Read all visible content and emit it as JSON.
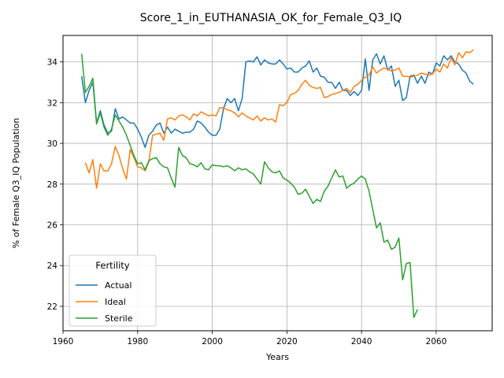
{
  "chart_data": {
    "type": "line",
    "title": "Score_1_in_EUTHANASIA_OK_for_Female_Q3_IQ",
    "xlabel": "Years",
    "ylabel": "% of Female Q3_IQ Population",
    "xlim": [
      1960,
      2075
    ],
    "ylim": [
      20.8,
      35.3
    ],
    "xticks": [
      1960,
      1980,
      2000,
      2020,
      2040,
      2060
    ],
    "yticks": [
      22,
      24,
      26,
      28,
      30,
      32,
      34
    ],
    "grid": true,
    "legend": {
      "title": "Fertility",
      "placement": "lower-left"
    },
    "series": [
      {
        "name": "Actual",
        "color": "#1f77b4",
        "points": [
          [
            1965,
            33.3
          ],
          [
            1966,
            32.0
          ],
          [
            1967,
            32.6
          ],
          [
            1968,
            33.0
          ],
          [
            1969,
            31.0
          ],
          [
            1970,
            31.6
          ],
          [
            1971,
            30.9
          ],
          [
            1972,
            30.5
          ],
          [
            1973,
            30.6
          ],
          [
            1974,
            31.7
          ],
          [
            1975,
            31.2
          ],
          [
            1976,
            31.3
          ],
          [
            1977,
            31.15
          ],
          [
            1978,
            31.0
          ],
          [
            1979,
            31.0
          ],
          [
            1980,
            30.7
          ],
          [
            1981,
            30.3
          ],
          [
            1982,
            29.8
          ],
          [
            1983,
            30.4
          ],
          [
            1984,
            30.6
          ],
          [
            1985,
            30.9
          ],
          [
            1986,
            31.0
          ],
          [
            1987,
            30.5
          ],
          [
            1988,
            30.8
          ],
          [
            1989,
            30.5
          ],
          [
            1990,
            30.7
          ],
          [
            1991,
            30.6
          ],
          [
            1992,
            30.5
          ],
          [
            1993,
            30.55
          ],
          [
            1994,
            30.55
          ],
          [
            1995,
            30.7
          ],
          [
            1996,
            31.1
          ],
          [
            1997,
            31.0
          ],
          [
            1998,
            30.8
          ],
          [
            1999,
            30.55
          ],
          [
            2000,
            30.4
          ],
          [
            2001,
            30.4
          ],
          [
            2002,
            30.7
          ],
          [
            2003,
            31.7
          ],
          [
            2004,
            32.2
          ],
          [
            2005,
            32.0
          ],
          [
            2006,
            32.2
          ],
          [
            2007,
            31.6
          ],
          [
            2008,
            32.2
          ],
          [
            2009,
            34.0
          ],
          [
            2010,
            34.05
          ],
          [
            2011,
            34.0
          ],
          [
            2012,
            34.25
          ],
          [
            2013,
            33.85
          ],
          [
            2014,
            34.1
          ],
          [
            2015,
            33.95
          ],
          [
            2016,
            33.9
          ],
          [
            2017,
            33.9
          ],
          [
            2018,
            34.1
          ],
          [
            2019,
            33.9
          ],
          [
            2020,
            33.65
          ],
          [
            2021,
            33.7
          ],
          [
            2022,
            33.5
          ],
          [
            2023,
            33.5
          ],
          [
            2024,
            33.7
          ],
          [
            2025,
            33.8
          ],
          [
            2026,
            34.05
          ],
          [
            2027,
            33.5
          ],
          [
            2028,
            33.7
          ],
          [
            2029,
            33.3
          ],
          [
            2030,
            33.25
          ],
          [
            2031,
            33.0
          ],
          [
            2032,
            33.0
          ],
          [
            2033,
            32.7
          ],
          [
            2034,
            33.0
          ],
          [
            2035,
            32.6
          ],
          [
            2036,
            32.6
          ],
          [
            2037,
            32.35
          ],
          [
            2038,
            32.55
          ],
          [
            2039,
            32.35
          ],
          [
            2040,
            32.6
          ],
          [
            2041,
            34.15
          ],
          [
            2042,
            32.6
          ],
          [
            2043,
            34.1
          ],
          [
            2044,
            34.4
          ],
          [
            2045,
            33.9
          ],
          [
            2046,
            34.3
          ],
          [
            2047,
            33.6
          ],
          [
            2048,
            33.8
          ],
          [
            2049,
            32.8
          ],
          [
            2050,
            33.1
          ],
          [
            2051,
            32.1
          ],
          [
            2052,
            32.25
          ],
          [
            2053,
            33.3
          ],
          [
            2054,
            33.35
          ],
          [
            2055,
            32.95
          ],
          [
            2056,
            33.3
          ],
          [
            2057,
            32.95
          ],
          [
            2058,
            33.5
          ],
          [
            2059,
            33.4
          ],
          [
            2060,
            33.95
          ],
          [
            2061,
            33.8
          ],
          [
            2062,
            34.3
          ],
          [
            2063,
            34.1
          ],
          [
            2064,
            34.3
          ],
          [
            2065,
            34.0
          ],
          [
            2066,
            33.9
          ],
          [
            2067,
            33.6
          ],
          [
            2068,
            33.45
          ],
          [
            2069,
            33.05
          ],
          [
            2070,
            32.9
          ]
        ]
      },
      {
        "name": "Ideal",
        "color": "#ff7f0e",
        "points": [
          [
            1966,
            29.05
          ],
          [
            1967,
            28.55
          ],
          [
            1968,
            29.2
          ],
          [
            1969,
            27.8
          ],
          [
            1970,
            29.0
          ],
          [
            1971,
            28.65
          ],
          [
            1972,
            28.65
          ],
          [
            1973,
            29.0
          ],
          [
            1974,
            29.85
          ],
          [
            1975,
            29.4
          ],
          [
            1976,
            28.75
          ],
          [
            1977,
            28.25
          ],
          [
            1978,
            29.7
          ],
          [
            1979,
            29.3
          ],
          [
            1980,
            28.85
          ],
          [
            1981,
            28.8
          ],
          [
            1982,
            28.65
          ],
          [
            1983,
            29.1
          ],
          [
            1984,
            30.4
          ],
          [
            1985,
            30.45
          ],
          [
            1986,
            30.5
          ],
          [
            1987,
            30.15
          ],
          [
            1988,
            31.2
          ],
          [
            1989,
            31.25
          ],
          [
            1990,
            31.15
          ],
          [
            1991,
            31.35
          ],
          [
            1992,
            31.4
          ],
          [
            1993,
            31.3
          ],
          [
            1994,
            31.15
          ],
          [
            1995,
            31.45
          ],
          [
            1996,
            31.35
          ],
          [
            1997,
            31.55
          ],
          [
            1998,
            31.45
          ],
          [
            1999,
            31.35
          ],
          [
            2000,
            31.4
          ],
          [
            2001,
            31.35
          ],
          [
            2002,
            31.75
          ],
          [
            2003,
            31.75
          ],
          [
            2004,
            31.65
          ],
          [
            2005,
            31.6
          ],
          [
            2006,
            31.5
          ],
          [
            2007,
            31.3
          ],
          [
            2008,
            31.5
          ],
          [
            2009,
            31.35
          ],
          [
            2010,
            31.25
          ],
          [
            2011,
            31.15
          ],
          [
            2012,
            31.35
          ],
          [
            2013,
            31.1
          ],
          [
            2014,
            31.25
          ],
          [
            2015,
            31.15
          ],
          [
            2016,
            31.2
          ],
          [
            2017,
            31.05
          ],
          [
            2018,
            31.9
          ],
          [
            2019,
            31.85
          ],
          [
            2020,
            32.0
          ],
          [
            2021,
            32.4
          ],
          [
            2022,
            32.45
          ],
          [
            2023,
            32.6
          ],
          [
            2024,
            32.9
          ],
          [
            2025,
            33.1
          ],
          [
            2026,
            32.85
          ],
          [
            2027,
            32.75
          ],
          [
            2028,
            32.7
          ],
          [
            2029,
            32.75
          ],
          [
            2030,
            32.25
          ],
          [
            2031,
            32.3
          ],
          [
            2032,
            32.4
          ],
          [
            2033,
            32.45
          ],
          [
            2034,
            32.5
          ],
          [
            2035,
            32.6
          ],
          [
            2036,
            32.7
          ],
          [
            2037,
            32.5
          ],
          [
            2038,
            32.8
          ],
          [
            2039,
            32.9
          ],
          [
            2040,
            33.1
          ],
          [
            2041,
            33.25
          ],
          [
            2042,
            33.35
          ],
          [
            2043,
            33.75
          ],
          [
            2044,
            33.45
          ],
          [
            2045,
            33.6
          ],
          [
            2046,
            33.7
          ],
          [
            2047,
            33.65
          ],
          [
            2048,
            33.55
          ],
          [
            2049,
            33.6
          ],
          [
            2050,
            33.7
          ],
          [
            2051,
            33.3
          ],
          [
            2052,
            33.3
          ],
          [
            2053,
            33.25
          ],
          [
            2054,
            33.3
          ],
          [
            2055,
            33.35
          ],
          [
            2056,
            33.45
          ],
          [
            2057,
            33.4
          ],
          [
            2058,
            33.35
          ],
          [
            2059,
            33.4
          ],
          [
            2060,
            33.65
          ],
          [
            2061,
            33.5
          ],
          [
            2062,
            33.9
          ],
          [
            2063,
            33.7
          ],
          [
            2064,
            34.2
          ],
          [
            2065,
            33.85
          ],
          [
            2066,
            34.45
          ],
          [
            2067,
            34.2
          ],
          [
            2068,
            34.5
          ],
          [
            2069,
            34.45
          ],
          [
            2070,
            34.6
          ]
        ]
      },
      {
        "name": "Sterile",
        "color": "#2ca02c",
        "points": [
          [
            1965,
            34.4
          ],
          [
            1966,
            32.5
          ],
          [
            1967,
            32.8
          ],
          [
            1968,
            33.2
          ],
          [
            1969,
            30.95
          ],
          [
            1970,
            31.5
          ],
          [
            1971,
            30.8
          ],
          [
            1972,
            30.4
          ],
          [
            1973,
            30.7
          ],
          [
            1974,
            31.4
          ],
          [
            1975,
            31.1
          ],
          [
            1976,
            30.8
          ],
          [
            1977,
            30.4
          ],
          [
            1978,
            29.9
          ],
          [
            1979,
            29.4
          ],
          [
            1980,
            29.0
          ],
          [
            1981,
            29.05
          ],
          [
            1982,
            28.7
          ],
          [
            1983,
            29.15
          ],
          [
            1984,
            29.25
          ],
          [
            1985,
            29.3
          ],
          [
            1986,
            29.0
          ],
          [
            1987,
            28.85
          ],
          [
            1988,
            28.8
          ],
          [
            1989,
            28.3
          ],
          [
            1990,
            27.85
          ],
          [
            1991,
            29.8
          ],
          [
            1992,
            29.4
          ],
          [
            1993,
            29.3
          ],
          [
            1994,
            29.0
          ],
          [
            1995,
            28.95
          ],
          [
            1996,
            28.85
          ],
          [
            1997,
            29.05
          ],
          [
            1998,
            28.75
          ],
          [
            1999,
            28.7
          ],
          [
            2000,
            28.95
          ],
          [
            2001,
            28.9
          ],
          [
            2002,
            28.9
          ],
          [
            2003,
            28.85
          ],
          [
            2004,
            28.9
          ],
          [
            2005,
            28.8
          ],
          [
            2006,
            28.65
          ],
          [
            2007,
            28.8
          ],
          [
            2008,
            28.7
          ],
          [
            2009,
            28.75
          ],
          [
            2010,
            28.6
          ],
          [
            2011,
            28.5
          ],
          [
            2012,
            28.25
          ],
          [
            2013,
            28.0
          ],
          [
            2014,
            29.1
          ],
          [
            2015,
            28.8
          ],
          [
            2016,
            28.6
          ],
          [
            2017,
            28.55
          ],
          [
            2018,
            28.65
          ],
          [
            2019,
            28.3
          ],
          [
            2020,
            28.2
          ],
          [
            2021,
            28.05
          ],
          [
            2022,
            27.85
          ],
          [
            2023,
            27.5
          ],
          [
            2024,
            27.55
          ],
          [
            2025,
            27.75
          ],
          [
            2026,
            27.4
          ],
          [
            2027,
            27.05
          ],
          [
            2028,
            27.25
          ],
          [
            2029,
            27.15
          ],
          [
            2030,
            27.65
          ],
          [
            2031,
            27.9
          ],
          [
            2032,
            28.3
          ],
          [
            2033,
            28.7
          ],
          [
            2034,
            28.35
          ],
          [
            2035,
            28.4
          ],
          [
            2036,
            27.8
          ],
          [
            2037,
            27.95
          ],
          [
            2038,
            28.05
          ],
          [
            2039,
            28.25
          ],
          [
            2040,
            28.4
          ],
          [
            2041,
            28.25
          ],
          [
            2042,
            27.65
          ],
          [
            2043,
            26.75
          ],
          [
            2044,
            25.85
          ],
          [
            2045,
            26.1
          ],
          [
            2046,
            25.15
          ],
          [
            2047,
            25.25
          ],
          [
            2048,
            24.8
          ],
          [
            2049,
            24.9
          ],
          [
            2050,
            25.35
          ],
          [
            2051,
            23.3
          ],
          [
            2052,
            24.1
          ],
          [
            2053,
            24.15
          ],
          [
            2054,
            21.45
          ],
          [
            2055,
            21.85
          ]
        ]
      }
    ]
  }
}
